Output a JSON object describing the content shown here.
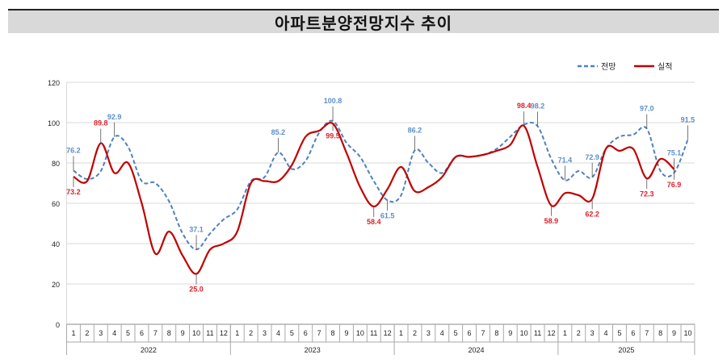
{
  "chart_data": {
    "type": "line",
    "title": "아파트분양전망지수 추이",
    "ylim": [
      0,
      120
    ],
    "yticks": [
      0,
      20,
      40,
      60,
      80,
      100,
      120
    ],
    "grid": true,
    "legend_position": "top-right",
    "years": [
      {
        "label": "2022",
        "months": 12
      },
      {
        "label": "2023",
        "months": 12
      },
      {
        "label": "2024",
        "months": 12
      },
      {
        "label": "2025",
        "months": 10
      }
    ],
    "series": [
      {
        "name": "전망",
        "color": "#4f81bd",
        "style": "dashed",
        "values": [
          76.2,
          72,
          76,
          92.9,
          88,
          71,
          70,
          61,
          45,
          37.1,
          45,
          52,
          57,
          71,
          73,
          85.2,
          77,
          81,
          95,
          100.8,
          90,
          83,
          71,
          61.5,
          64,
          86.2,
          80,
          75,
          83,
          83,
          84,
          87,
          93,
          99,
          98.2,
          82,
          71.4,
          76,
          72.9,
          87,
          93,
          94,
          97.0,
          76,
          75.1,
          91.5
        ],
        "labels": [
          [
            0,
            "76.2"
          ],
          [
            3,
            "92.9"
          ],
          [
            9,
            "37.1"
          ],
          [
            15,
            "85.2"
          ],
          [
            19,
            "100.8"
          ],
          [
            23,
            "61.5"
          ],
          [
            25,
            "86.2"
          ],
          [
            34,
            "98.2"
          ],
          [
            36,
            "71.4"
          ],
          [
            38,
            "72.9"
          ],
          [
            42,
            "97.0"
          ],
          [
            44,
            "75.1"
          ],
          [
            45,
            "91.5"
          ]
        ]
      },
      {
        "name": "실적",
        "color": "#c00000",
        "style": "solid",
        "values": [
          73.2,
          71,
          89.8,
          75,
          80,
          60,
          35,
          46,
          34,
          25.0,
          37,
          40,
          46,
          70,
          71,
          71,
          79,
          93,
          96,
          99.5,
          85,
          68,
          58.4,
          67,
          78,
          66,
          68,
          73,
          83,
          83,
          84,
          86,
          89,
          98.4,
          78,
          58.9,
          65,
          64,
          62.2,
          87,
          86,
          87,
          72.3,
          82,
          76.9
        ],
        "labels": [
          [
            0,
            "73.2"
          ],
          [
            2,
            "89.8"
          ],
          [
            9,
            "25.0"
          ],
          [
            19,
            "99.5"
          ],
          [
            22,
            "58.4"
          ],
          [
            33,
            "98.4"
          ],
          [
            35,
            "58.9"
          ],
          [
            38,
            "62.2"
          ],
          [
            42,
            "72.3"
          ],
          [
            44,
            "76.9"
          ]
        ]
      }
    ]
  }
}
